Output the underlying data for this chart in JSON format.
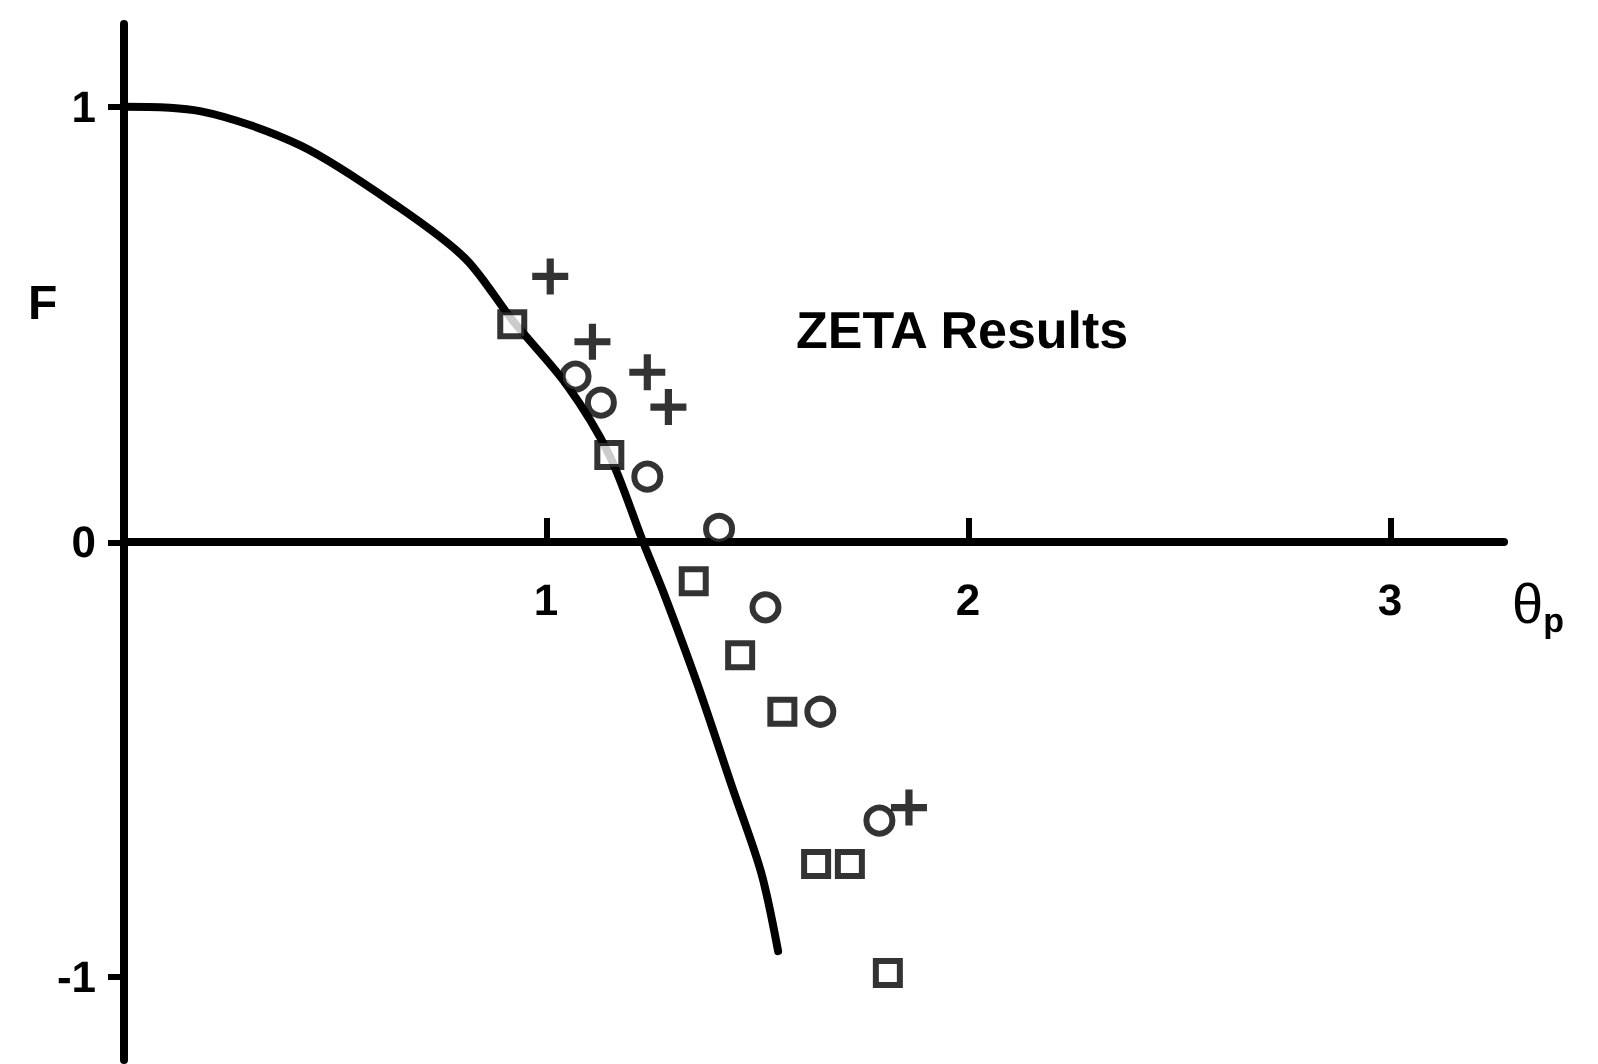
{
  "chart_data": {
    "type": "scatter",
    "xlabel": "θ$_{p}$",
    "ylabel": "F",
    "annotations": [
      "ZETA Results"
    ],
    "xlim": [
      0,
      3.27
    ],
    "ylim": [
      -1.19,
      1.19
    ],
    "xticks": [
      1,
      2,
      3
    ],
    "yticks": [
      -1,
      0,
      1
    ],
    "series": [
      {
        "type": "line",
        "color": "#000000",
        "marker": "none",
        "line_style": "solid",
        "x": [
          0,
          0.18,
          0.42,
          0.65,
          0.81,
          0.92,
          1.05,
          1.15,
          1.23,
          1.28,
          1.36,
          1.44,
          1.51,
          1.55
        ],
        "values": [
          1,
          0.99,
          0.91,
          0.77,
          0.65,
          0.51,
          0.36,
          0.2,
          0,
          -0.12,
          -0.33,
          -0.56,
          -0.76,
          -0.94
        ]
      },
      {
        "color": "#000000",
        "marker": "cross",
        "x": [
          1.01,
          1.11,
          1.24,
          1.29,
          1.86
        ],
        "values": [
          0.61,
          0.46,
          0.39,
          0.31,
          -0.61
        ]
      },
      {
        "color": "#000000",
        "marker": "circle",
        "x": [
          1.07,
          1.13,
          1.24,
          1.41,
          1.52,
          1.65,
          1.79
        ],
        "values": [
          0.38,
          0.32,
          0.15,
          0.03,
          -0.15,
          -0.39,
          -0.64
        ]
      },
      {
        "color": "#000000",
        "marker": "square",
        "x": [
          0.92,
          1.15,
          1.35,
          1.46,
          1.56,
          1.64,
          1.72,
          1.81
        ],
        "values": [
          0.5,
          0.2,
          -0.09,
          -0.26,
          -0.39,
          -0.74,
          -0.74,
          -0.99
        ]
      }
    ]
  }
}
